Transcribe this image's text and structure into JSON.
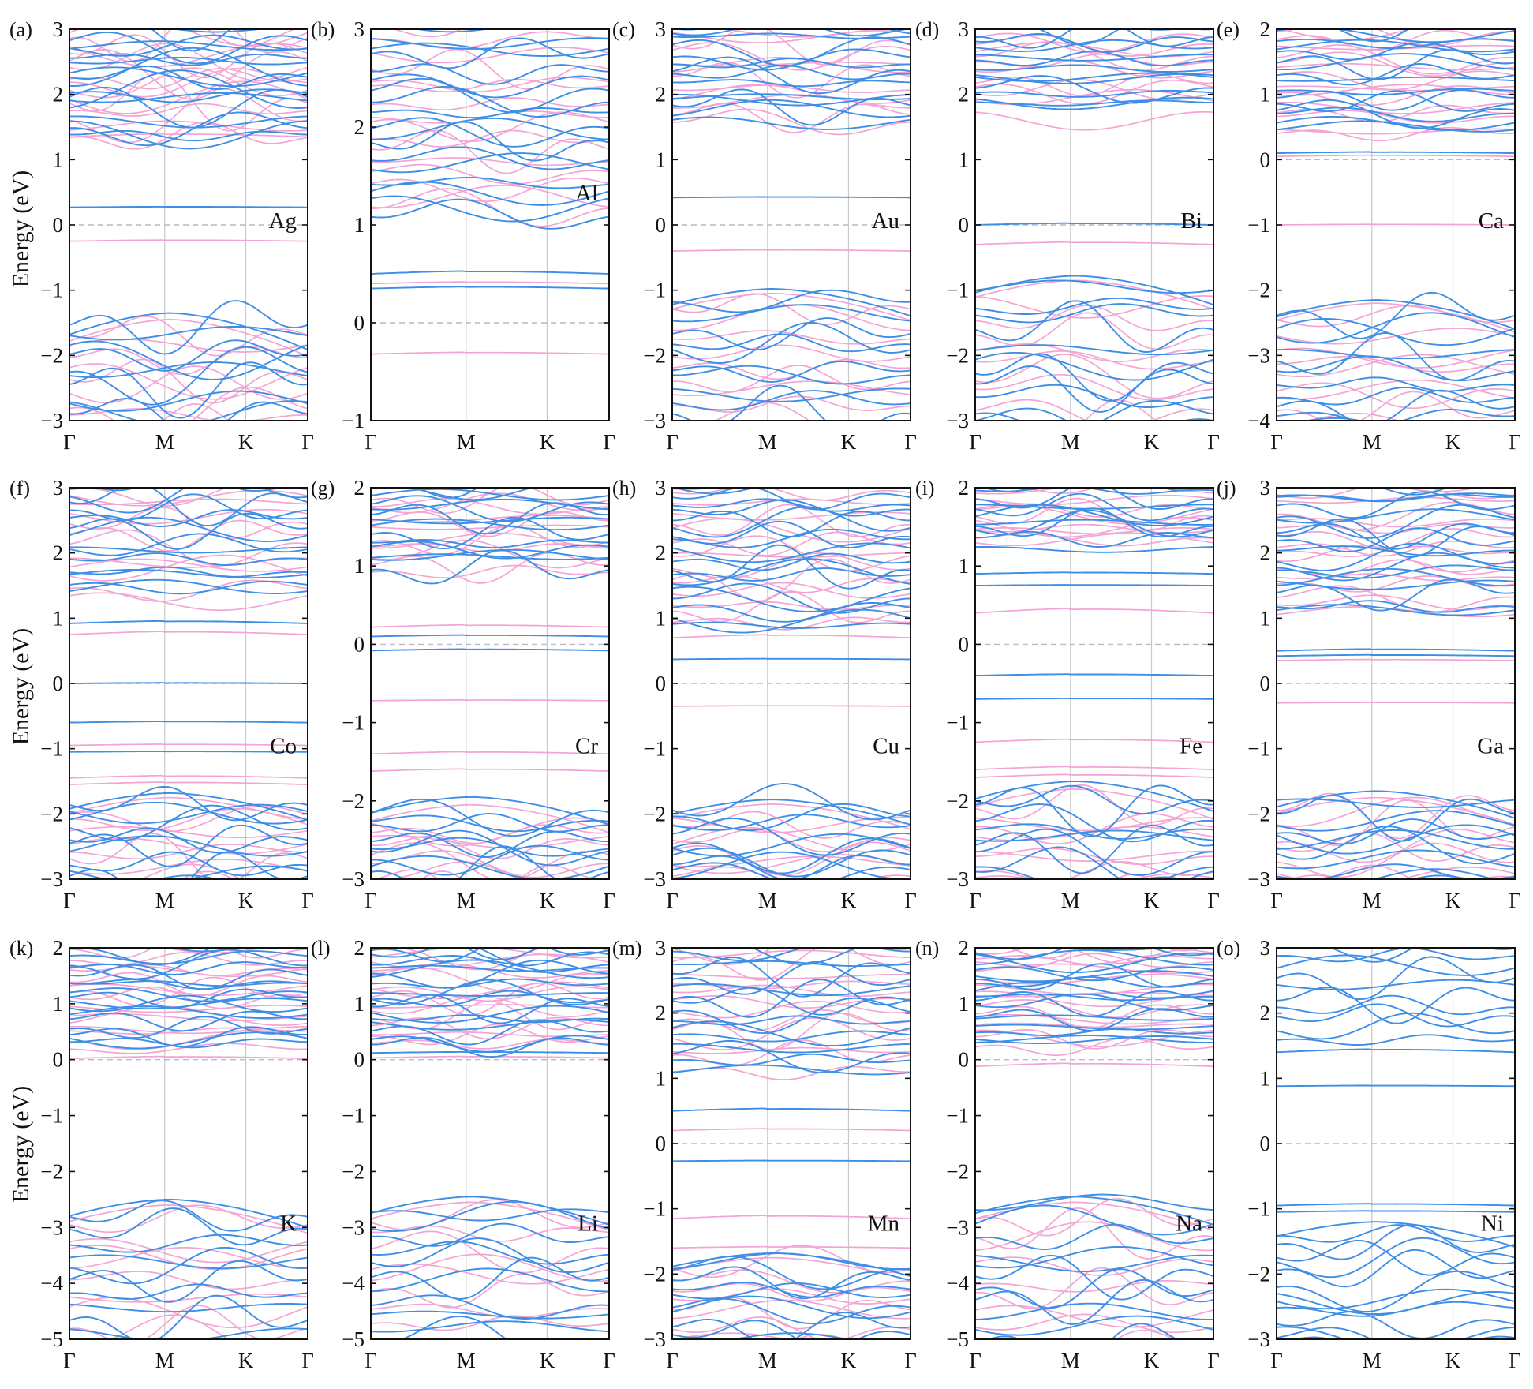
{
  "figure": {
    "ylabel": "Energy (eV)",
    "kpath_labels": [
      "Γ",
      "M",
      "K",
      "Γ"
    ],
    "colors": {
      "spin_up": "#f4a4d4",
      "spin_down": "#3f8ee6",
      "grid": "#c8c8c8",
      "fermi": "#b9b9c8",
      "frame": "#111111"
    }
  },
  "chart_data": [
    {
      "type": "line",
      "panel": "(a)",
      "element": "Ag",
      "ylim": [
        -3,
        3
      ],
      "yticks": [
        -3,
        -2,
        -1,
        0,
        1,
        2,
        3
      ],
      "series": [
        {
          "spin": "up",
          "levels": [
            {
              "e": -0.25,
              "w": 0.02
            },
            {
              "e": 1.35,
              "w": 0.05
            }
          ],
          "valence": {
            "emax": -1.45,
            "count": 10,
            "spread": 0.8,
            "bottom": -3.2
          },
          "conduction": {
            "emin": 1.3,
            "count": 16,
            "spread": 0.9,
            "top": 3.1
          }
        },
        {
          "spin": "down",
          "levels": [
            {
              "e": 0.27,
              "w": 0.01
            }
          ],
          "valence": {
            "emax": -1.35,
            "count": 12,
            "spread": 0.8,
            "bottom": -3.2
          },
          "conduction": {
            "emin": 1.3,
            "count": 18,
            "spread": 0.9,
            "top": 3.1
          }
        }
      ]
    },
    {
      "type": "line",
      "panel": "(b)",
      "element": "Al",
      "ylim": [
        -1,
        3
      ],
      "yticks": [
        -1,
        0,
        1,
        2,
        3
      ],
      "series": [
        {
          "spin": "up",
          "levels": [
            {
              "e": -0.32,
              "w": 0.02
            },
            {
              "e": 0.4,
              "w": 0.02
            }
          ],
          "valence": null,
          "conduction": {
            "emin": 1.05,
            "count": 16,
            "spread": 0.35,
            "top": 3.1
          }
        },
        {
          "spin": "down",
          "levels": [
            {
              "e": 0.35,
              "w": 0.02
            },
            {
              "e": 0.5,
              "w": 0.03
            }
          ],
          "valence": null,
          "conduction": {
            "emin": 1.05,
            "count": 18,
            "spread": 0.35,
            "top": 3.1
          }
        }
      ]
    },
    {
      "type": "line",
      "panel": "(c)",
      "element": "Au",
      "ylim": [
        -3,
        3
      ],
      "yticks": [
        -3,
        -2,
        -1,
        0,
        1,
        2,
        3
      ],
      "series": [
        {
          "spin": "up",
          "levels": [
            {
              "e": -0.4,
              "w": 0.02
            }
          ],
          "valence": {
            "emax": -1.05,
            "count": 10,
            "spread": 0.55,
            "bottom": -3.2
          },
          "conduction": {
            "emin": 1.5,
            "count": 12,
            "spread": 0.6,
            "top": 3.1
          }
        },
        {
          "spin": "down",
          "levels": [
            {
              "e": 0.42,
              "w": 0.01
            }
          ],
          "valence": {
            "emax": -0.98,
            "count": 12,
            "spread": 0.55,
            "bottom": -3.2
          },
          "conduction": {
            "emin": 1.55,
            "count": 14,
            "spread": 0.6,
            "top": 3.1
          }
        }
      ]
    },
    {
      "type": "line",
      "panel": "(d)",
      "element": "Bi",
      "ylim": [
        -3,
        3
      ],
      "yticks": [
        -3,
        -2,
        -1,
        0,
        1,
        2,
        3
      ],
      "series": [
        {
          "spin": "up",
          "levels": [
            {
              "e": -0.3,
              "w": 0.04
            }
          ],
          "valence": {
            "emax": -0.85,
            "count": 10,
            "spread": 0.6,
            "bottom": -3.2
          },
          "conduction": {
            "emin": 1.7,
            "count": 12,
            "spread": 0.4,
            "top": 3.1
          }
        },
        {
          "spin": "down",
          "levels": [
            {
              "e": 0.0,
              "w": 0.03
            }
          ],
          "valence": {
            "emax": -0.78,
            "count": 12,
            "spread": 0.6,
            "bottom": -3.2
          },
          "conduction": {
            "emin": 1.8,
            "count": 14,
            "spread": 0.4,
            "top": 3.1
          }
        }
      ]
    },
    {
      "type": "line",
      "panel": "(e)",
      "element": "Ca",
      "ylim": [
        -4,
        2
      ],
      "yticks": [
        -4,
        -3,
        -2,
        -1,
        0,
        1,
        2
      ],
      "series": [
        {
          "spin": "up",
          "levels": [
            {
              "e": -1.0,
              "w": 0.01
            },
            {
              "e": 0.05,
              "w": 0.02
            }
          ],
          "valence": {
            "emax": -2.2,
            "count": 10,
            "spread": 0.6,
            "bottom": -4.2
          },
          "conduction": {
            "emin": 0.35,
            "count": 16,
            "spread": 0.45,
            "top": 2.1
          }
        },
        {
          "spin": "down",
          "levels": [
            {
              "e": 0.1,
              "w": 0.02
            }
          ],
          "valence": {
            "emax": -2.15,
            "count": 12,
            "spread": 0.6,
            "bottom": -4.2
          },
          "conduction": {
            "emin": 0.4,
            "count": 16,
            "spread": 0.45,
            "top": 2.1
          }
        }
      ]
    },
    {
      "type": "line",
      "panel": "(f)",
      "element": "Co",
      "ylim": [
        -3,
        3
      ],
      "yticks": [
        -3,
        -2,
        -1,
        0,
        1,
        2,
        3
      ],
      "series": [
        {
          "spin": "up",
          "levels": [
            {
              "e": 0.75,
              "w": 0.05
            },
            {
              "e": -0.95,
              "w": 0.02
            },
            {
              "e": -1.45,
              "w": 0.04
            },
            {
              "e": -1.55,
              "w": 0.04
            }
          ],
          "valence": {
            "emax": -1.75,
            "count": 10,
            "spread": 0.55,
            "bottom": -3.2
          },
          "conduction": {
            "emin": 1.3,
            "count": 12,
            "spread": 0.6,
            "top": 3.1
          }
        },
        {
          "spin": "down",
          "levels": [
            {
              "e": 0.0,
              "w": 0.01
            },
            {
              "e": 0.92,
              "w": 0.04
            },
            {
              "e": -0.6,
              "w": 0.02
            },
            {
              "e": -1.05,
              "w": 0.01
            }
          ],
          "valence": {
            "emax": -1.68,
            "count": 12,
            "spread": 0.55,
            "bottom": -3.2
          },
          "conduction": {
            "emin": 1.3,
            "count": 14,
            "spread": 0.6,
            "top": 3.1
          }
        }
      ]
    },
    {
      "type": "line",
      "panel": "(g)",
      "element": "Cr",
      "ylim": [
        -3,
        2
      ],
      "yticks": [
        -3,
        -2,
        -1,
        0,
        1,
        2
      ],
      "series": [
        {
          "spin": "up",
          "levels": [
            {
              "e": 0.22,
              "w": 0.03
            },
            {
              "e": -0.72,
              "w": 0.01
            },
            {
              "e": -1.4,
              "w": 0.03
            },
            {
              "e": -1.62,
              "w": 0.03
            }
          ],
          "valence": {
            "emax": -2.05,
            "count": 10,
            "spread": 0.45,
            "bottom": -3.2
          },
          "conduction": {
            "emin": 0.85,
            "count": 14,
            "spread": 0.35,
            "top": 2.1
          }
        },
        {
          "spin": "down",
          "levels": [
            {
              "e": 0.1,
              "w": 0.02
            },
            {
              "e": -0.08,
              "w": 0.02
            }
          ],
          "valence": {
            "emax": -1.95,
            "count": 12,
            "spread": 0.45,
            "bottom": -3.2
          },
          "conduction": {
            "emin": 0.9,
            "count": 14,
            "spread": 0.35,
            "top": 2.1
          }
        }
      ]
    },
    {
      "type": "line",
      "panel": "(h)",
      "element": "Cu",
      "ylim": [
        -3,
        3
      ],
      "yticks": [
        -3,
        -2,
        -1,
        0,
        1,
        2,
        3
      ],
      "series": [
        {
          "spin": "up",
          "levels": [
            {
              "e": -0.35,
              "w": 0.01
            },
            {
              "e": 0.7,
              "w": 0.05
            }
          ],
          "valence": {
            "emax": -1.85,
            "count": 10,
            "spread": 0.5,
            "bottom": -3.2
          },
          "conduction": {
            "emin": 0.9,
            "count": 16,
            "spread": 0.6,
            "top": 3.1
          }
        },
        {
          "spin": "down",
          "levels": [
            {
              "e": 0.37,
              "w": 0.01
            }
          ],
          "valence": {
            "emax": -1.78,
            "count": 12,
            "spread": 0.5,
            "bottom": -3.2
          },
          "conduction": {
            "emin": 0.85,
            "count": 18,
            "spread": 0.6,
            "top": 3.1
          }
        }
      ]
    },
    {
      "type": "line",
      "panel": "(i)",
      "element": "Fe",
      "ylim": [
        -3,
        2
      ],
      "yticks": [
        -3,
        -2,
        -1,
        0,
        1,
        2
      ],
      "series": [
        {
          "spin": "up",
          "levels": [
            {
              "e": 0.4,
              "w": 0.06
            },
            {
              "e": -1.25,
              "w": 0.04
            },
            {
              "e": -1.6,
              "w": 0.04
            },
            {
              "e": -1.7,
              "w": 0.04
            }
          ],
          "valence": {
            "emax": -1.85,
            "count": 10,
            "spread": 0.5,
            "bottom": -3.2
          },
          "conduction": {
            "emin": 1.2,
            "count": 12,
            "spread": 0.4,
            "top": 2.1
          }
        },
        {
          "spin": "down",
          "levels": [
            {
              "e": 0.75,
              "w": 0.01
            },
            {
              "e": 0.9,
              "w": 0.02
            },
            {
              "e": -0.4,
              "w": 0.02
            },
            {
              "e": -0.7,
              "w": 0.01
            }
          ],
          "valence": {
            "emax": -1.75,
            "count": 12,
            "spread": 0.5,
            "bottom": -3.2
          },
          "conduction": {
            "emin": 1.2,
            "count": 12,
            "spread": 0.4,
            "top": 2.1
          }
        }
      ]
    },
    {
      "type": "line",
      "panel": "(j)",
      "element": "Ga",
      "ylim": [
        -3,
        3
      ],
      "yticks": [
        -3,
        -2,
        -1,
        0,
        1,
        2,
        3
      ],
      "series": [
        {
          "spin": "up",
          "levels": [
            {
              "e": -0.3,
              "w": 0.01
            },
            {
              "e": 0.35,
              "w": 0.02
            }
          ],
          "valence": {
            "emax": -1.75,
            "count": 10,
            "spread": 0.55,
            "bottom": -3.2
          },
          "conduction": {
            "emin": 1.05,
            "count": 16,
            "spread": 0.5,
            "top": 3.1
          }
        },
        {
          "spin": "down",
          "levels": [
            {
              "e": 0.42,
              "w": 0.02
            },
            {
              "e": 0.5,
              "w": 0.03
            }
          ],
          "valence": {
            "emax": -1.65,
            "count": 12,
            "spread": 0.55,
            "bottom": -3.2
          },
          "conduction": {
            "emin": 1.05,
            "count": 18,
            "spread": 0.5,
            "top": 3.1
          }
        }
      ]
    },
    {
      "type": "line",
      "panel": "(k)",
      "element": "K",
      "ylim": [
        -5,
        2
      ],
      "yticks": [
        -5,
        -4,
        -3,
        -2,
        -1,
        0,
        1,
        2
      ],
      "series": [
        {
          "spin": "up",
          "levels": [
            {
              "e": 0.02,
              "w": 0.04
            }
          ],
          "valence": {
            "emax": -2.6,
            "count": 10,
            "spread": 0.7,
            "bottom": -5.2
          },
          "conduction": {
            "emin": 0.15,
            "count": 16,
            "spread": 0.5,
            "top": 2.1
          }
        },
        {
          "spin": "down",
          "levels": [],
          "valence": {
            "emax": -2.5,
            "count": 12,
            "spread": 0.7,
            "bottom": -5.2
          },
          "conduction": {
            "emin": 0.2,
            "count": 18,
            "spread": 0.5,
            "top": 2.1
          }
        }
      ]
    },
    {
      "type": "line",
      "panel": "(l)",
      "element": "Li",
      "ylim": [
        -5,
        2
      ],
      "yticks": [
        -5,
        -4,
        -3,
        -2,
        -1,
        0,
        1,
        2
      ],
      "series": [
        {
          "spin": "up",
          "levels": [
            {
              "e": 0.03,
              "w": 0.03
            }
          ],
          "valence": {
            "emax": -2.55,
            "count": 10,
            "spread": 0.7,
            "bottom": -5.2
          },
          "conduction": {
            "emin": 0.2,
            "count": 16,
            "spread": 0.5,
            "top": 2.1
          }
        },
        {
          "spin": "down",
          "levels": [
            {
              "e": 0.12,
              "w": 0.02
            }
          ],
          "valence": {
            "emax": -2.45,
            "count": 12,
            "spread": 0.7,
            "bottom": -5.2
          },
          "conduction": {
            "emin": 0.25,
            "count": 18,
            "spread": 0.5,
            "top": 2.1
          }
        }
      ]
    },
    {
      "type": "line",
      "panel": "(m)",
      "element": "Mn",
      "ylim": [
        -3,
        3
      ],
      "yticks": [
        -3,
        -2,
        -1,
        0,
        1,
        2,
        3
      ],
      "series": [
        {
          "spin": "up",
          "levels": [
            {
              "e": 0.2,
              "w": 0.03
            },
            {
              "e": -1.15,
              "w": 0.05
            },
            {
              "e": -1.6,
              "w": 0.02
            }
          ],
          "valence": {
            "emax": -1.75,
            "count": 10,
            "spread": 0.45,
            "bottom": -3.2
          },
          "conduction": {
            "emin": 1.1,
            "count": 14,
            "spread": 0.6,
            "top": 3.1
          }
        },
        {
          "spin": "down",
          "levels": [
            {
              "e": 0.5,
              "w": 0.04
            },
            {
              "e": -0.27,
              "w": 0.01
            }
          ],
          "valence": {
            "emax": -1.68,
            "count": 12,
            "spread": 0.45,
            "bottom": -3.2
          },
          "conduction": {
            "emin": 1.05,
            "count": 16,
            "spread": 0.6,
            "top": 3.1
          }
        }
      ]
    },
    {
      "type": "line",
      "panel": "(n)",
      "element": "Na",
      "ylim": [
        -5,
        2
      ],
      "yticks": [
        -5,
        -4,
        -3,
        -2,
        -1,
        0,
        1,
        2
      ],
      "series": [
        {
          "spin": "up",
          "levels": [
            {
              "e": -0.12,
              "w": 0.06
            }
          ],
          "valence": {
            "emax": -2.55,
            "count": 10,
            "spread": 0.7,
            "bottom": -5.2
          },
          "conduction": {
            "emin": 0.2,
            "count": 16,
            "spread": 0.5,
            "top": 2.1
          }
        },
        {
          "spin": "down",
          "levels": [],
          "valence": {
            "emax": -2.45,
            "count": 12,
            "spread": 0.7,
            "bottom": -5.2
          },
          "conduction": {
            "emin": 0.25,
            "count": 18,
            "spread": 0.5,
            "top": 2.1
          }
        }
      ]
    },
    {
      "type": "line",
      "panel": "(o)",
      "element": "Ni",
      "ylim": [
        -3,
        3
      ],
      "yticks": [
        -3,
        -2,
        -1,
        0,
        1,
        2,
        3
      ],
      "series": [
        {
          "spin": "down",
          "levels": [
            {
              "e": 0.88,
              "w": 0.01
            },
            {
              "e": 1.4,
              "w": 0.05
            },
            {
              "e": -0.95,
              "w": 0.03
            },
            {
              "e": -1.05,
              "w": 0.02
            }
          ],
          "valence": {
            "emax": -1.2,
            "count": 14,
            "spread": 0.5,
            "bottom": -3.2
          },
          "conduction": {
            "emin": 1.55,
            "count": 10,
            "spread": 0.6,
            "top": 3.1
          }
        }
      ]
    }
  ]
}
